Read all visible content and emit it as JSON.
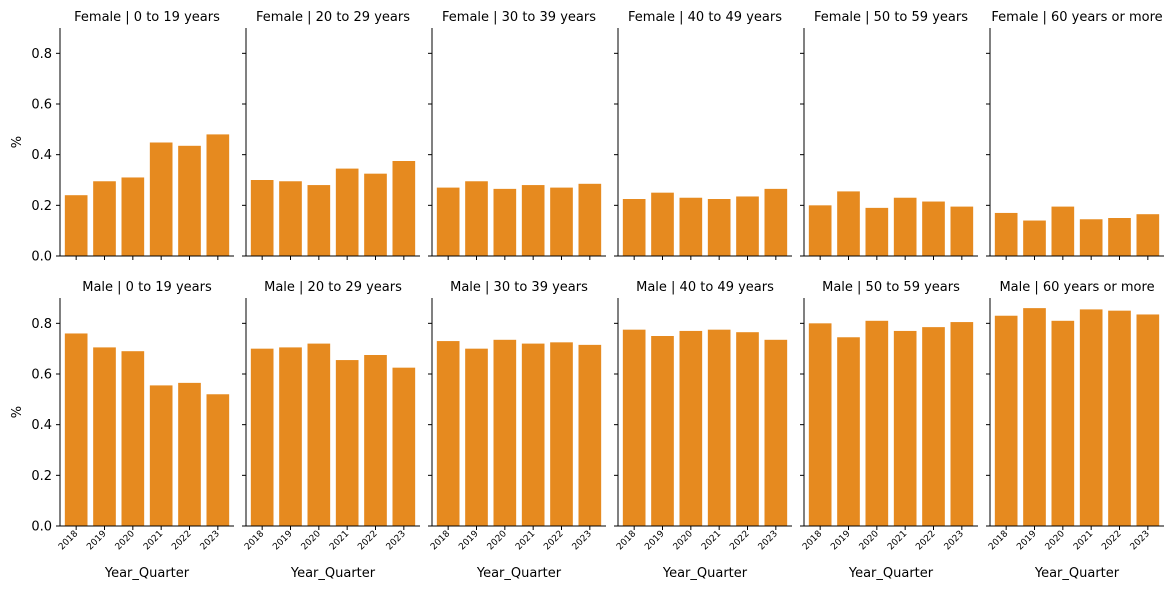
{
  "chart_data": {
    "type": "bar",
    "layout": "facet-grid",
    "rows": [
      "Female",
      "Male"
    ],
    "columns": [
      "0 to 19 years",
      "20 to 29 years",
      "30 to 39 years",
      "40 to 49 years",
      "50 to 59 years",
      "60 years or more"
    ],
    "categories": [
      "2018",
      "2019",
      "2020",
      "2021",
      "2022",
      "2023"
    ],
    "xlabel": "Year_Quarter",
    "ylabel": "%",
    "ylim": [
      0,
      0.9
    ],
    "yticks": [
      "0.0",
      "0.2",
      "0.4",
      "0.6",
      "0.8"
    ],
    "bar_color": "#e68a1f",
    "panels": [
      {
        "title": "Female | 0 to 19 years",
        "values": [
          0.24,
          0.295,
          0.31,
          0.448,
          0.435,
          0.48
        ]
      },
      {
        "title": "Female | 20 to 29 years",
        "values": [
          0.3,
          0.295,
          0.28,
          0.345,
          0.325,
          0.375
        ]
      },
      {
        "title": "Female | 30 to 39 years",
        "values": [
          0.27,
          0.295,
          0.265,
          0.28,
          0.27,
          0.285
        ]
      },
      {
        "title": "Female | 40 to 49 years",
        "values": [
          0.225,
          0.25,
          0.23,
          0.225,
          0.235,
          0.265
        ]
      },
      {
        "title": "Female | 50 to 59 years",
        "values": [
          0.2,
          0.255,
          0.19,
          0.23,
          0.215,
          0.195
        ]
      },
      {
        "title": "Female | 60 years or more",
        "values": [
          0.17,
          0.14,
          0.195,
          0.145,
          0.15,
          0.165
        ]
      },
      {
        "title": "Male | 0 to 19 years",
        "values": [
          0.76,
          0.705,
          0.69,
          0.555,
          0.565,
          0.52
        ]
      },
      {
        "title": "Male | 20 to 29 years",
        "values": [
          0.7,
          0.705,
          0.72,
          0.655,
          0.675,
          0.625
        ]
      },
      {
        "title": "Male | 30 to 39 years",
        "values": [
          0.73,
          0.7,
          0.735,
          0.72,
          0.725,
          0.715
        ]
      },
      {
        "title": "Male | 40 to 49 years",
        "values": [
          0.775,
          0.75,
          0.77,
          0.775,
          0.765,
          0.735
        ]
      },
      {
        "title": "Male | 50 to 59 years",
        "values": [
          0.8,
          0.745,
          0.81,
          0.77,
          0.785,
          0.805
        ]
      },
      {
        "title": "Male | 60 years or more",
        "values": [
          0.83,
          0.86,
          0.81,
          0.855,
          0.85,
          0.835
        ]
      }
    ]
  }
}
